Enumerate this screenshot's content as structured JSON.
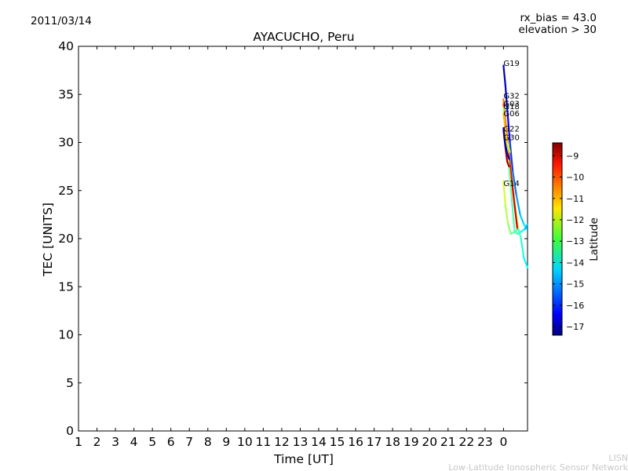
{
  "header": {
    "date": "2011/03/14",
    "rx_bias": "rx_bias = 43.0",
    "elevation": "elevation > 30"
  },
  "footer": {
    "line1": "LISN",
    "line2": "Low-Latitude Ionospheric Sensor Network"
  },
  "chart_data": {
    "type": "line",
    "title": "AYACUCHO, Peru",
    "xlabel": "Time [UT]",
    "ylabel": "TEC [UNITS]",
    "ylim": [
      0,
      40
    ],
    "xlim": [
      0,
      24.3
    ],
    "xticks": [
      {
        "pos": 0,
        "label": "1"
      },
      {
        "pos": 1,
        "label": "2"
      },
      {
        "pos": 2,
        "label": "3"
      },
      {
        "pos": 3,
        "label": "4"
      },
      {
        "pos": 4,
        "label": "5"
      },
      {
        "pos": 5,
        "label": "6"
      },
      {
        "pos": 6,
        "label": "7"
      },
      {
        "pos": 7,
        "label": "8"
      },
      {
        "pos": 8,
        "label": "9"
      },
      {
        "pos": 9,
        "label": "10"
      },
      {
        "pos": 10,
        "label": "11"
      },
      {
        "pos": 11,
        "label": "12"
      },
      {
        "pos": 12,
        "label": "13"
      },
      {
        "pos": 13,
        "label": "14"
      },
      {
        "pos": 14,
        "label": "15"
      },
      {
        "pos": 15,
        "label": "16"
      },
      {
        "pos": 16,
        "label": "17"
      },
      {
        "pos": 17,
        "label": "18"
      },
      {
        "pos": 18,
        "label": "19"
      },
      {
        "pos": 19,
        "label": "20"
      },
      {
        "pos": 20,
        "label": "21"
      },
      {
        "pos": 21,
        "label": "22"
      },
      {
        "pos": 22,
        "label": "23"
      },
      {
        "pos": 23,
        "label": "0"
      }
    ],
    "yticks": [
      0,
      5,
      10,
      15,
      20,
      25,
      30,
      35,
      40
    ],
    "colorbar": {
      "label": "Latitude",
      "range": [
        -17.4,
        -8.4
      ],
      "ticks": [
        -9,
        -10,
        -11,
        -12,
        -13,
        -14,
        -15,
        -16,
        -17
      ]
    },
    "series": [
      {
        "name": "G19",
        "label_at": [
          23.0,
          38.2
        ],
        "points": [
          [
            23.0,
            38.0
          ],
          [
            23.1,
            36.0
          ],
          [
            23.2,
            33.5
          ],
          [
            23.35,
            30.0
          ],
          [
            23.5,
            27.0
          ],
          [
            23.7,
            24.5
          ],
          [
            23.9,
            22.5
          ],
          [
            24.1,
            21.5
          ],
          [
            24.25,
            21.0
          ]
        ],
        "lat": [
          -17.0,
          -16.8,
          -16.5,
          -16.0,
          -15.5,
          -15.0,
          -14.6,
          -14.3,
          -14.0
        ]
      },
      {
        "name": "G32",
        "label_at": [
          23.0,
          34.8
        ],
        "points": [
          [
            23.0,
            34.5
          ],
          [
            23.1,
            32.5
          ],
          [
            23.2,
            30.5
          ],
          [
            23.35,
            28.0
          ],
          [
            23.5,
            25.5
          ],
          [
            23.65,
            23.0
          ],
          [
            23.8,
            21.0
          ]
        ],
        "lat": [
          -10.5,
          -10.6,
          -10.8,
          -11.0,
          -11.3,
          -11.6,
          -12.0
        ]
      },
      {
        "name": "G03",
        "label_at": [
          23.0,
          34.0
        ],
        "points": [
          [
            23.0,
            34.0
          ],
          [
            23.15,
            31.0
          ],
          [
            23.3,
            28.5
          ],
          [
            23.45,
            26.0
          ],
          [
            23.6,
            23.5
          ],
          [
            23.75,
            21.0
          ]
        ],
        "lat": [
          -10.2,
          -10.0,
          -9.7,
          -9.4,
          -9.2,
          -9.0
        ]
      },
      {
        "name": "G18",
        "label_at": [
          23.0,
          33.7
        ],
        "points": [
          [
            23.0,
            33.6
          ],
          [
            23.15,
            30.5
          ],
          [
            23.3,
            27.5
          ],
          [
            23.45,
            24.0
          ],
          [
            23.6,
            20.8
          ],
          [
            23.75,
            20.5
          ],
          [
            23.95,
            20.7
          ],
          [
            24.15,
            21.0
          ],
          [
            24.3,
            21.5
          ]
        ],
        "lat": [
          -12.5,
          -12.8,
          -13.0,
          -13.2,
          -13.4,
          -13.5,
          -13.8,
          -14.2,
          -15.0
        ]
      },
      {
        "name": "G06",
        "label_at": [
          23.0,
          33.0
        ],
        "points": [
          [
            23.0,
            33.0
          ],
          [
            23.1,
            31.5
          ],
          [
            23.2,
            30.0
          ],
          [
            23.35,
            29.0
          ]
        ],
        "lat": [
          -11.0,
          -11.2,
          -11.5,
          -11.8
        ]
      },
      {
        "name": "G22",
        "label_at": [
          23.0,
          31.4
        ],
        "points": [
          [
            23.0,
            31.3
          ],
          [
            23.1,
            29.5
          ],
          [
            23.2,
            28.0
          ],
          [
            23.3,
            27.5
          ]
        ],
        "lat": [
          -9.0,
          -8.9,
          -8.8,
          -8.8
        ]
      },
      {
        "name": "G30",
        "label_at": [
          23.0,
          30.5
        ],
        "points": [
          [
            23.0,
            31.5
          ],
          [
            23.08,
            30.0
          ],
          [
            23.18,
            29.0
          ],
          [
            23.3,
            28.3
          ]
        ],
        "lat": [
          -17.0,
          -16.9,
          -16.8,
          -16.7
        ]
      },
      {
        "name": "G14",
        "label_at": [
          23.0,
          25.7
        ],
        "points": [
          [
            23.0,
            26.0
          ],
          [
            23.1,
            23.5
          ],
          [
            23.25,
            21.5
          ],
          [
            23.4,
            20.5
          ],
          [
            23.6,
            20.7
          ],
          [
            23.8,
            21.0
          ],
          [
            23.95,
            20.0
          ],
          [
            24.1,
            18.0
          ],
          [
            24.3,
            17.0
          ]
        ],
        "lat": [
          -12.0,
          -12.3,
          -12.6,
          -13.0,
          -13.2,
          -13.3,
          -13.5,
          -13.8,
          -14.2
        ]
      }
    ]
  }
}
